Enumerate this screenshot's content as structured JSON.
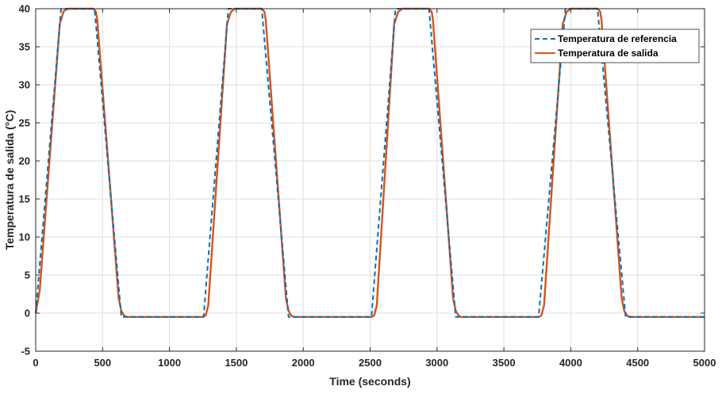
{
  "chart_data": {
    "type": "line",
    "title": "",
    "xlabel": "Time (seconds)",
    "ylabel": "Temperatura de salida (°C)",
    "xlim": [
      0,
      5000
    ],
    "ylim": [
      -5,
      40
    ],
    "xticks": [
      0,
      500,
      1000,
      1500,
      2000,
      2500,
      3000,
      3500,
      4000,
      4500,
      5000
    ],
    "yticks": [
      -5,
      0,
      5,
      10,
      15,
      20,
      25,
      30,
      35,
      40
    ],
    "grid": true,
    "legend_position": "top-right",
    "series": [
      {
        "name": "Temperatura de referencia",
        "style": "dashed",
        "color": "#0072BD",
        "x": [
          0,
          190,
          440,
          640,
          1255,
          1440,
          1690,
          1890,
          2510,
          2690,
          2940,
          3140,
          3760,
          3960,
          4200,
          4410,
          5000
        ],
        "y": [
          0,
          40,
          40,
          -0.5,
          -0.5,
          40,
          40,
          -0.5,
          -0.5,
          40,
          40,
          -0.5,
          -0.5,
          40,
          40,
          -0.5,
          -0.5
        ]
      },
      {
        "name": "Temperatura de salida",
        "style": "solid",
        "color": "#D95319",
        "x": [
          0,
          30,
          180,
          210,
          240,
          430,
          450,
          460,
          620,
          640,
          660,
          680,
          1250,
          1270,
          1290,
          1430,
          1460,
          1490,
          1690,
          1710,
          1720,
          1870,
          1890,
          1910,
          1930,
          2510,
          2530,
          2550,
          2680,
          2710,
          2740,
          2940,
          2960,
          2970,
          3120,
          3140,
          3160,
          3180,
          3760,
          3780,
          3800,
          3940,
          3970,
          4000,
          4200,
          4220,
          4230,
          4380,
          4400,
          4420,
          4440,
          5000
        ],
        "y": [
          0,
          3,
          38,
          39.7,
          40,
          40,
          39.6,
          38.5,
          2,
          0.3,
          -0.3,
          -0.5,
          -0.5,
          -0.3,
          1,
          38,
          39.6,
          40,
          40,
          39.6,
          38.5,
          2,
          0.3,
          -0.3,
          -0.5,
          -0.5,
          -0.3,
          1,
          38,
          39.6,
          40,
          40,
          39.6,
          38.5,
          2,
          0.3,
          -0.3,
          -0.5,
          -0.5,
          -0.3,
          1,
          38,
          39.6,
          40,
          40,
          39.6,
          38.5,
          2,
          0.3,
          -0.3,
          -0.5,
          -0.5
        ]
      }
    ]
  }
}
